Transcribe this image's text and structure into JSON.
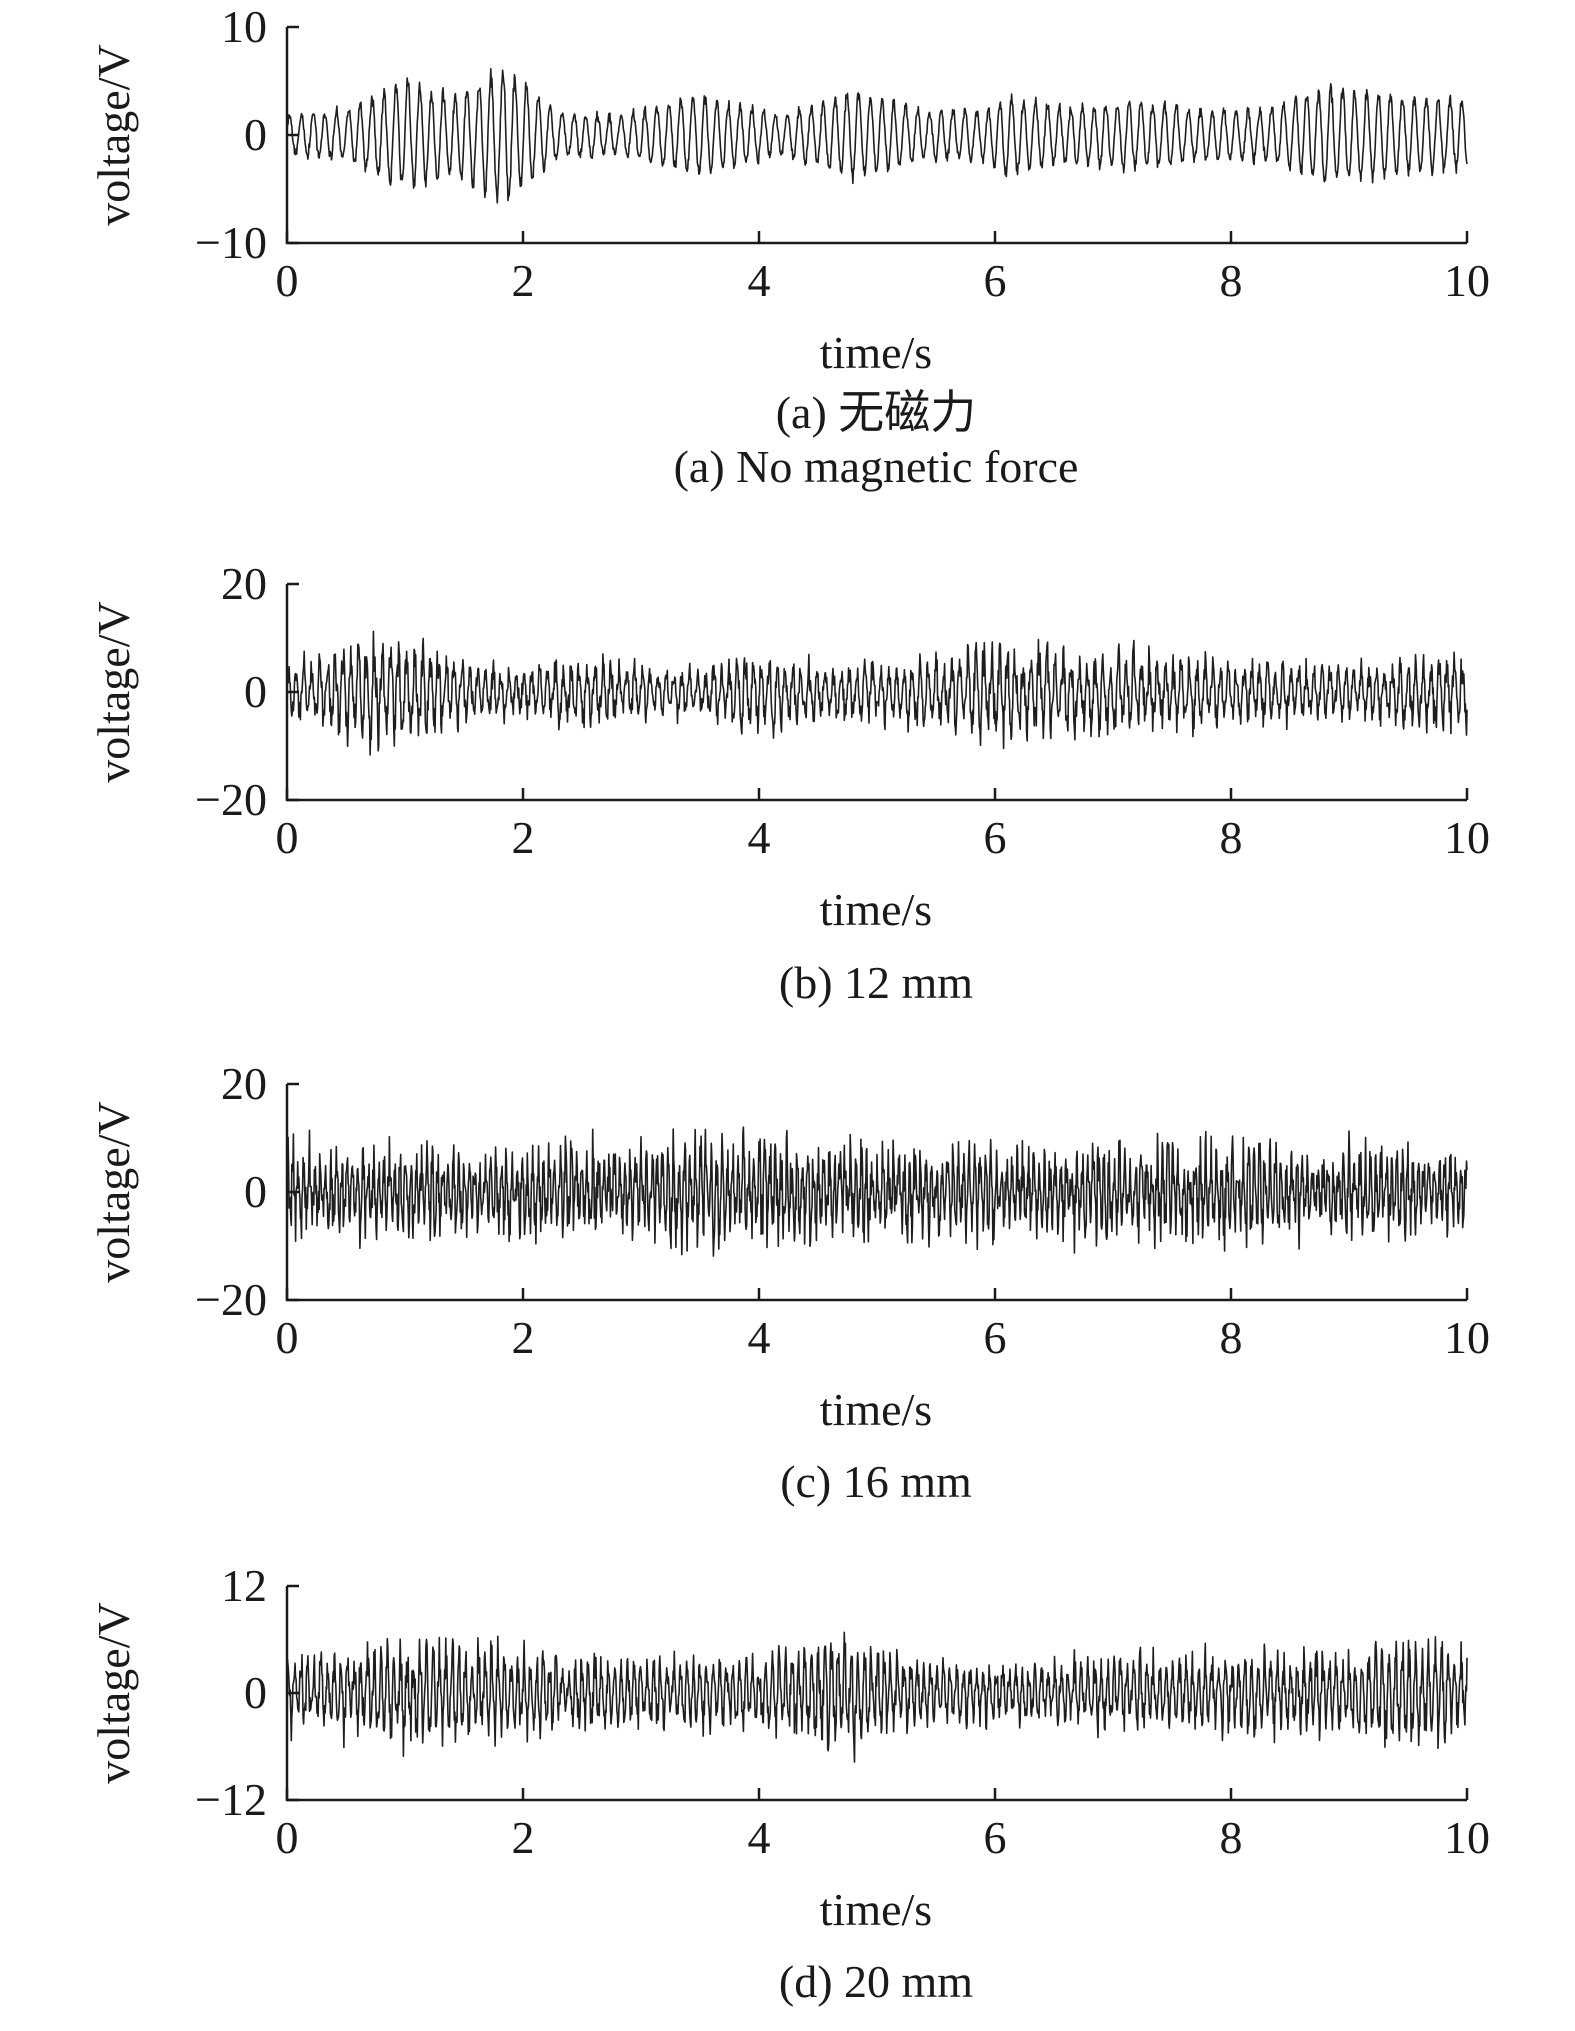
{
  "chart_data": [
    {
      "type": "line",
      "panel": "a",
      "xlabel": "time/s",
      "ylabel": "voltage/V",
      "xlim": [
        0,
        10
      ],
      "ylim": [
        -10,
        10
      ],
      "xticks": [
        "0",
        "2",
        "4",
        "6",
        "8",
        "10"
      ],
      "yticks": [
        "10",
        "0",
        "−10"
      ],
      "caption_lines": [
        "(a) 无磁力",
        "(a) No magnetic force"
      ],
      "signal": {
        "amplitude_envelope": {
          "t": [
            0,
            0.5,
            1.0,
            1.4,
            1.85,
            2.3,
            2.8,
            3.5,
            4.2,
            4.8,
            5.4,
            5.9,
            6.1,
            6.6,
            7.2,
            7.8,
            8.3,
            8.8,
            9.3,
            10
          ],
          "v": [
            2,
            2.5,
            5.5,
            4,
            7,
            2.2,
            2,
            4,
            2,
            4.5,
            2.5,
            2.5,
            4,
            2.8,
            3.5,
            2.5,
            2.5,
            5,
            4,
            3.5
          ]
        },
        "cycles_per_second": 10,
        "style": "oscillatory"
      }
    },
    {
      "type": "line",
      "panel": "b",
      "xlabel": "time/s",
      "ylabel": "voltage/V",
      "xlim": [
        0,
        10
      ],
      "ylim": [
        -20,
        20
      ],
      "xticks": [
        "0",
        "2",
        "4",
        "6",
        "8",
        "10"
      ],
      "yticks": [
        "20",
        "0",
        "−20"
      ],
      "caption_lines": [
        "(b) 12 mm"
      ],
      "signal": {
        "amplitude_envelope": {
          "t": [
            0,
            0.3,
            0.7,
            1.1,
            1.6,
            2.0,
            2.4,
            3.0,
            3.5,
            3.9,
            4.4,
            5.0,
            5.6,
            6.0,
            6.5,
            7.2,
            7.8,
            8.5,
            9.2,
            9.6,
            10
          ],
          "v": [
            6,
            9,
            13,
            11,
            7,
            6,
            8,
            7,
            5,
            10,
            8,
            7,
            9,
            12,
            10,
            9,
            8,
            7,
            6,
            9,
            9
          ]
        },
        "cycles_per_second": 15,
        "style": "noisy"
      }
    },
    {
      "type": "line",
      "panel": "c",
      "xlabel": "time/s",
      "ylabel": "voltage/V",
      "xlim": [
        0,
        10
      ],
      "ylim": [
        -20,
        20
      ],
      "xticks": [
        "0",
        "2",
        "4",
        "6",
        "8",
        "10"
      ],
      "yticks": [
        "20",
        "0",
        "−20"
      ],
      "caption_lines": [
        "(c) 16 mm"
      ],
      "signal": {
        "amplitude_envelope": {
          "t": [
            0,
            1,
            2,
            3,
            3.9,
            5,
            6,
            6.8,
            7.6,
            8.5,
            9.5,
            10
          ],
          "v": [
            10,
            10,
            10,
            11,
            12,
            11,
            10,
            11,
            12,
            10,
            10,
            9
          ]
        },
        "cycles_per_second": 22,
        "style": "dense"
      }
    },
    {
      "type": "line",
      "panel": "d",
      "xlabel": "time/s",
      "ylabel": "voltage/V",
      "xlim": [
        0,
        10
      ],
      "ylim": [
        -12,
        12
      ],
      "xticks": [
        "0",
        "2",
        "4",
        "6",
        "8",
        "10"
      ],
      "yticks": [
        "12",
        "0",
        "−12"
      ],
      "caption_lines": [
        "(d) 20 mm"
      ],
      "signal": {
        "amplitude_envelope": {
          "t": [
            0,
            0.8,
            1.3,
            2,
            3,
            4,
            4.6,
            5.2,
            6,
            7,
            8,
            9,
            9.5,
            10
          ],
          "v": [
            5,
            7,
            8,
            6,
            5,
            5,
            9,
            5,
            4,
            5,
            6,
            6,
            7,
            6
          ]
        },
        "cycles_per_second": 18,
        "style": "noisy"
      }
    }
  ]
}
